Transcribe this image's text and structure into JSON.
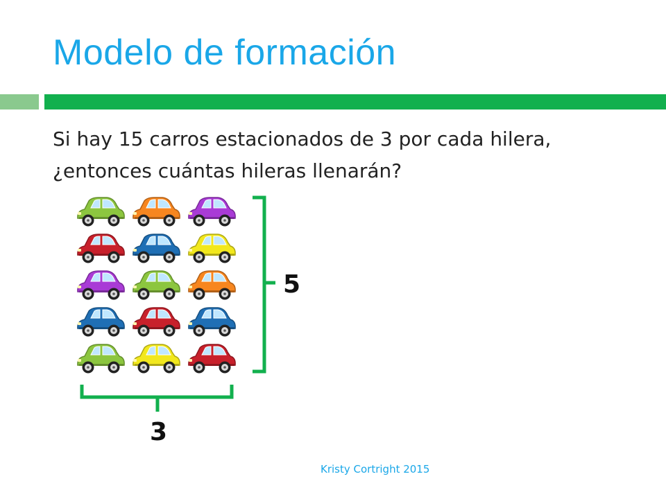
{
  "slide": {
    "title": "Modelo de formación",
    "question": "Si hay 15 carros estacionados de 3 por cada hilera, ¿entonces cuántas hileras llenarán?",
    "rows_label": "5",
    "columns_label": "3",
    "footer": "Kristy Cortright 2015"
  },
  "cars": {
    "rows": 5,
    "per_row": 3,
    "colors": [
      [
        "green",
        "orange",
        "purple"
      ],
      [
        "red",
        "blue",
        "yellow"
      ],
      [
        "purple",
        "green",
        "orange"
      ],
      [
        "blue",
        "red",
        "blue"
      ],
      [
        "green",
        "yellow",
        "red"
      ]
    ]
  },
  "palette": {
    "green": "#8cc63f",
    "orange": "#f7861f",
    "purple": "#a93bd6",
    "red": "#c8202b",
    "blue": "#1f6fb5",
    "yellow": "#f2e81d",
    "bracket": "#12b04e",
    "title": "#1aa7e8"
  }
}
